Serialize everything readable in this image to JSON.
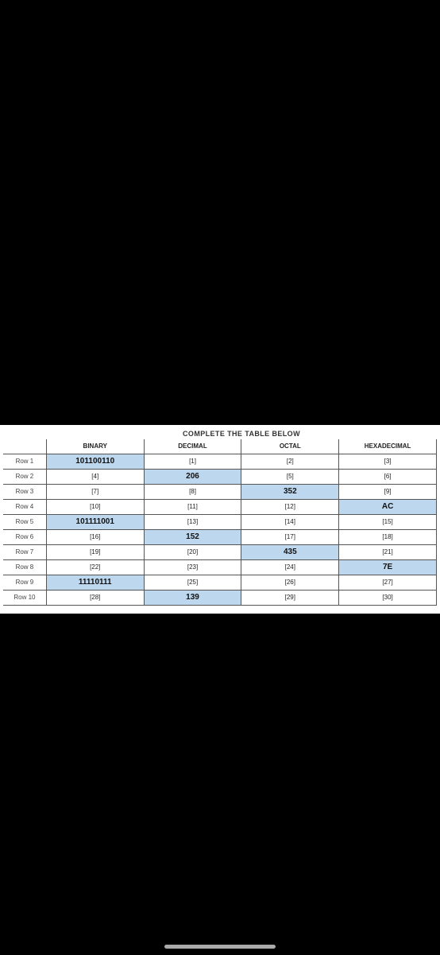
{
  "title": "COMPLETE THE TABLE BELOW",
  "headers": {
    "c0": "",
    "c1": "BINARY",
    "c2": "DECIMAL",
    "c3": "OCTAL",
    "c4": "HEXADECIMAL"
  },
  "hl_bg": "#bdd7ee",
  "rows": [
    {
      "label": "Row 1",
      "cells": [
        {
          "v": "101100110",
          "hl": true
        },
        {
          "v": "[1]"
        },
        {
          "v": "[2]"
        },
        {
          "v": "[3]"
        }
      ]
    },
    {
      "label": "Row 2",
      "cells": [
        {
          "v": "[4]"
        },
        {
          "v": "206",
          "hl": true
        },
        {
          "v": "[5]"
        },
        {
          "v": "[6]"
        }
      ]
    },
    {
      "label": "Row 3",
      "cells": [
        {
          "v": "[7]"
        },
        {
          "v": "[8]"
        },
        {
          "v": "352",
          "hl": true
        },
        {
          "v": "[9]"
        }
      ]
    },
    {
      "label": "Row 4",
      "cells": [
        {
          "v": "[10]"
        },
        {
          "v": "[11]"
        },
        {
          "v": "[12]"
        },
        {
          "v": "AC",
          "hl": true
        }
      ]
    },
    {
      "label": "Row 5",
      "cells": [
        {
          "v": "101111001",
          "hl": true
        },
        {
          "v": "[13]"
        },
        {
          "v": "[14]"
        },
        {
          "v": "[15]"
        }
      ]
    },
    {
      "label": "Row 6",
      "cells": [
        {
          "v": "[16]"
        },
        {
          "v": "152",
          "hl": true
        },
        {
          "v": "[17]"
        },
        {
          "v": "[18]"
        }
      ]
    },
    {
      "label": "Row 7",
      "cells": [
        {
          "v": "[19]"
        },
        {
          "v": "[20]"
        },
        {
          "v": "435",
          "hl": true
        },
        {
          "v": "[21]"
        }
      ]
    },
    {
      "label": "Row 8",
      "cells": [
        {
          "v": "[22]"
        },
        {
          "v": "[23]"
        },
        {
          "v": "[24]"
        },
        {
          "v": "7E",
          "hl": true
        }
      ]
    },
    {
      "label": "Row 9",
      "cells": [
        {
          "v": "11110111",
          "hl": true
        },
        {
          "v": "[25]"
        },
        {
          "v": "[26]"
        },
        {
          "v": "[27]"
        }
      ]
    },
    {
      "label": "Row 10",
      "cells": [
        {
          "v": "[28]"
        },
        {
          "v": "139",
          "hl": true
        },
        {
          "v": "[29]"
        },
        {
          "v": "[30]"
        }
      ]
    }
  ]
}
